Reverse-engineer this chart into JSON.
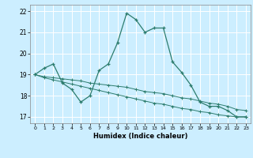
{
  "xlabel": "Humidex (Indice chaleur)",
  "ylabel": "",
  "background_color": "#cceeff",
  "line_color": "#2d7d6e",
  "grid_color": "#ffffff",
  "xlim": [
    -0.5,
    23.5
  ],
  "ylim": [
    16.7,
    22.3
  ],
  "xticks": [
    0,
    1,
    2,
    3,
    4,
    5,
    6,
    7,
    8,
    9,
    10,
    11,
    12,
    13,
    14,
    15,
    16,
    17,
    18,
    19,
    20,
    21,
    22,
    23
  ],
  "yticks": [
    17,
    18,
    19,
    20,
    21,
    22
  ],
  "curve1": {
    "x": [
      0,
      1,
      2,
      3,
      4,
      5,
      6,
      7,
      8,
      9,
      10,
      11,
      12,
      13,
      14,
      15,
      16,
      17,
      18,
      19,
      20,
      21,
      22,
      23
    ],
    "y": [
      19.0,
      19.3,
      19.5,
      18.6,
      18.3,
      17.7,
      18.0,
      19.2,
      19.5,
      20.5,
      21.9,
      21.6,
      21.0,
      21.2,
      21.2,
      19.6,
      19.1,
      18.5,
      17.7,
      17.5,
      17.5,
      17.3,
      17.0,
      17.0
    ]
  },
  "curve2": {
    "x": [
      0,
      1,
      2,
      3,
      4,
      5,
      6,
      7,
      8,
      9,
      10,
      11,
      12,
      13,
      14,
      15,
      16,
      17,
      18,
      19,
      20,
      21,
      22,
      23
    ],
    "y": [
      19.0,
      18.9,
      18.85,
      18.8,
      18.75,
      18.7,
      18.6,
      18.55,
      18.5,
      18.45,
      18.4,
      18.3,
      18.2,
      18.15,
      18.1,
      18.0,
      17.9,
      17.85,
      17.75,
      17.65,
      17.6,
      17.5,
      17.35,
      17.3
    ]
  },
  "curve3": {
    "x": [
      0,
      1,
      2,
      3,
      4,
      5,
      6,
      7,
      8,
      9,
      10,
      11,
      12,
      13,
      14,
      15,
      16,
      17,
      18,
      19,
      20,
      21,
      22,
      23
    ],
    "y": [
      19.0,
      18.85,
      18.75,
      18.65,
      18.55,
      18.45,
      18.35,
      18.25,
      18.15,
      18.05,
      17.95,
      17.85,
      17.75,
      17.65,
      17.6,
      17.5,
      17.4,
      17.35,
      17.25,
      17.2,
      17.1,
      17.05,
      17.0,
      17.0
    ]
  }
}
